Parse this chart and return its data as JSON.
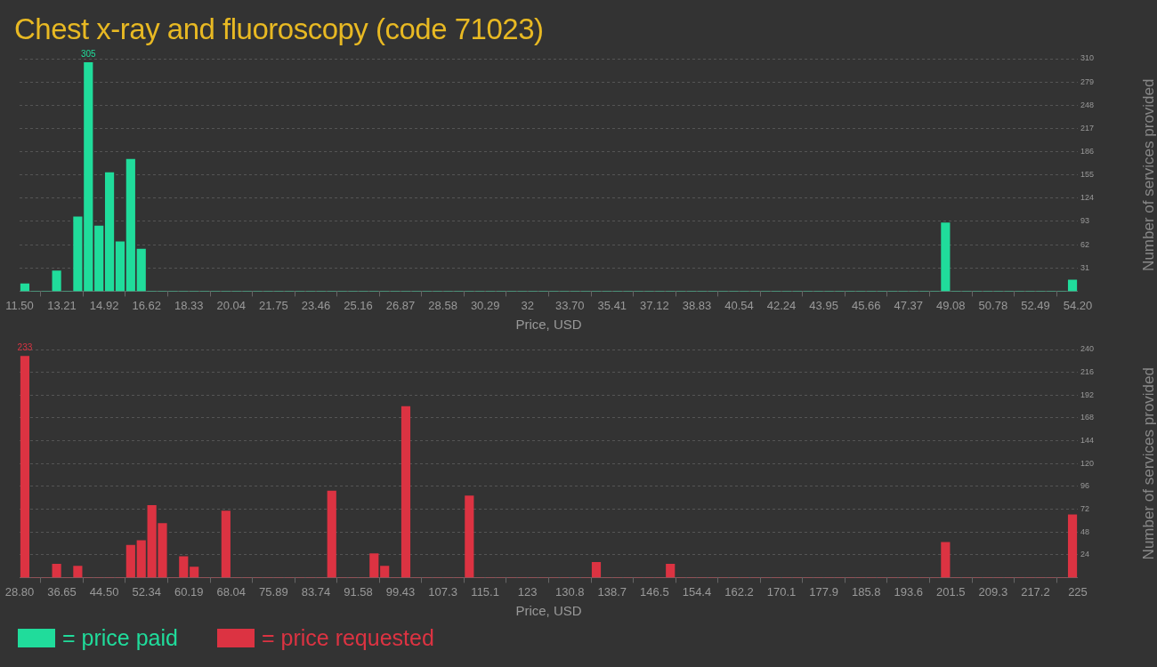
{
  "chart_data": [
    {
      "type": "histogram",
      "title": "Chest x-ray and fluoroscopy (code 71023)",
      "xlabel": "Price, USD",
      "ylabel": "Number of services provided",
      "grid": "y",
      "legend": "bottom left",
      "bins": [
        11.5,
        11.927,
        12.354,
        12.781,
        13.208,
        13.635,
        14.062,
        14.489,
        14.916,
        15.343,
        15.77,
        16.197,
        16.624,
        17.051,
        17.478,
        17.905,
        18.332,
        18.759,
        19.186,
        19.613,
        20.04,
        20.467,
        20.894,
        21.321,
        21.748,
        22.175,
        22.602,
        23.029,
        23.456,
        23.883,
        24.31,
        24.737,
        25.164,
        25.591,
        26.018,
        26.445,
        26.872,
        27.299,
        27.726,
        28.153,
        28.58,
        29.007,
        29.434,
        29.861,
        30.288,
        30.715,
        31.142,
        31.569,
        31.996,
        32.423,
        32.85,
        33.277,
        33.704,
        34.131,
        34.558,
        34.985,
        35.412,
        35.839,
        36.266,
        36.693,
        37.12,
        37.547,
        37.974,
        38.401,
        38.828,
        39.255,
        39.682,
        40.109,
        40.536,
        40.963,
        41.39,
        41.817,
        42.244,
        42.671,
        43.098,
        43.525,
        43.952,
        44.379,
        44.806,
        45.233,
        45.66,
        46.087,
        46.514,
        46.941,
        47.368,
        47.795,
        48.222,
        48.649,
        49.076,
        49.503,
        49.93,
        50.357,
        50.784,
        51.211,
        51.638,
        52.065,
        52.492,
        52.919,
        53.346,
        53.773,
        54.2
      ],
      "series": [
        {
          "name": "= price paid",
          "color": "#20dc9b",
          "values": [
            10,
            0,
            0,
            27,
            0,
            99,
            305,
            87,
            158,
            66,
            176,
            56,
            0,
            0,
            0,
            0,
            0,
            0,
            0,
            0,
            0,
            0,
            0,
            0,
            0,
            0,
            0,
            0,
            0,
            0,
            0,
            0,
            0,
            0,
            0,
            0,
            0,
            0,
            0,
            0,
            0,
            0,
            0,
            0,
            0,
            0,
            0,
            0,
            0,
            0,
            0,
            0,
            0,
            0,
            0,
            0,
            0,
            0,
            0,
            0,
            0,
            0,
            0,
            0,
            0,
            0,
            0,
            0,
            0,
            0,
            0,
            0,
            0,
            0,
            0,
            0,
            0,
            0,
            0,
            0,
            0,
            0,
            0,
            0,
            0,
            0,
            0,
            91,
            0,
            0,
            0,
            0,
            0,
            0,
            0,
            0,
            0,
            0,
            0,
            15
          ],
          "value_labels": [
            null,
            null,
            null,
            null,
            null,
            null,
            "305",
            null,
            null,
            null,
            null,
            null,
            null,
            null,
            null,
            null,
            null,
            null,
            null,
            null,
            null,
            null,
            null,
            null,
            null,
            null,
            null,
            null,
            null,
            null,
            null,
            null,
            null,
            null,
            null,
            null,
            null,
            null,
            null,
            null,
            null,
            null,
            null,
            null,
            null,
            null,
            null,
            null,
            null,
            null,
            null,
            null,
            null,
            null,
            null,
            null,
            null,
            null,
            null,
            null,
            null,
            null,
            null,
            null,
            null,
            null,
            null,
            null,
            null,
            null,
            null,
            null,
            null,
            null,
            null,
            null,
            null,
            null,
            null,
            null,
            null,
            null,
            null,
            null,
            null,
            null,
            null,
            null,
            null,
            null,
            null,
            null,
            null,
            null,
            null,
            null,
            null,
            null,
            null,
            null
          ]
        }
      ],
      "xlim": [
        11.5,
        54.2
      ],
      "xticks": [
        {
          "value": 11.5,
          "label": "11.50"
        },
        {
          "value": 13.208,
          "label": "13.21"
        },
        {
          "value": 14.916,
          "label": "14.92"
        },
        {
          "value": 16.624,
          "label": "16.62"
        },
        {
          "value": 18.332,
          "label": "18.33"
        },
        {
          "value": 20.04,
          "label": "20.04"
        },
        {
          "value": 21.748,
          "label": "21.75"
        },
        {
          "value": 23.456,
          "label": "23.46"
        },
        {
          "value": 25.164,
          "label": "25.16"
        },
        {
          "value": 26.872,
          "label": "26.87"
        },
        {
          "value": 28.58,
          "label": "28.58"
        },
        {
          "value": 30.288,
          "label": "30.29"
        },
        {
          "value": 31.996,
          "label": "32"
        },
        {
          "value": 33.704,
          "label": "33.70"
        },
        {
          "value": 35.412,
          "label": "35.41"
        },
        {
          "value": 37.12,
          "label": "37.12"
        },
        {
          "value": 38.828,
          "label": "38.83"
        },
        {
          "value": 40.536,
          "label": "40.54"
        },
        {
          "value": 42.244,
          "label": "42.24"
        },
        {
          "value": 43.952,
          "label": "43.95"
        },
        {
          "value": 45.66,
          "label": "45.66"
        },
        {
          "value": 47.368,
          "label": "47.37"
        },
        {
          "value": 49.076,
          "label": "49.08"
        },
        {
          "value": 50.784,
          "label": "50.78"
        },
        {
          "value": 52.492,
          "label": "52.49"
        },
        {
          "value": 54.2,
          "label": "54.20"
        }
      ],
      "ylim": [
        0,
        310
      ],
      "yticks": [
        31,
        62,
        93,
        124,
        155,
        186,
        217,
        248,
        279,
        310
      ]
    },
    {
      "type": "histogram",
      "xlabel": "Price, USD",
      "ylabel": "Number of services provided",
      "grid": "y",
      "legend": "bottom left",
      "bins": [
        28.8,
        30.762,
        32.724,
        34.686,
        36.648,
        38.61,
        40.572,
        42.534,
        44.496,
        46.458,
        48.42,
        50.382,
        52.344,
        54.306,
        56.268,
        58.23,
        60.192,
        62.154,
        64.116,
        66.078,
        68.04,
        70.002,
        71.964,
        73.926,
        75.888,
        77.85,
        79.812,
        81.774,
        83.736,
        85.698,
        87.66,
        89.622,
        91.584,
        93.546,
        95.508,
        97.47,
        99.432,
        101.394,
        103.356,
        105.318,
        107.28,
        109.242,
        111.204,
        113.166,
        115.128,
        117.09,
        119.052,
        121.014,
        122.976,
        124.938,
        126.9,
        128.862,
        130.824,
        132.786,
        134.748,
        136.71,
        138.672,
        140.634,
        142.596,
        144.558,
        146.52,
        148.482,
        150.444,
        152.406,
        154.368,
        156.33,
        158.292,
        160.254,
        162.216,
        164.178,
        166.14,
        168.102,
        170.064,
        172.026,
        173.988,
        175.95,
        177.912,
        179.874,
        181.836,
        183.798,
        185.76,
        187.722,
        189.684,
        191.646,
        193.608,
        195.57,
        197.532,
        199.494,
        201.456,
        203.418,
        205.38,
        207.342,
        209.304,
        211.266,
        213.228,
        215.19,
        217.152,
        219.114,
        221.076,
        223.038,
        225
      ],
      "series": [
        {
          "name": "= price requested",
          "color": "#dc3342",
          "values": [
            233,
            0,
            0,
            14,
            0,
            12,
            0,
            0,
            0,
            0,
            34,
            39,
            76,
            57,
            0,
            22,
            11,
            0,
            0,
            70,
            0,
            0,
            0,
            0,
            0,
            0,
            0,
            0,
            0,
            91,
            0,
            0,
            0,
            25,
            12,
            0,
            180,
            0,
            0,
            0,
            0,
            0,
            86,
            0,
            0,
            0,
            0,
            0,
            0,
            0,
            0,
            0,
            0,
            0,
            16,
            0,
            0,
            0,
            0,
            0,
            0,
            14,
            0,
            0,
            0,
            0,
            0,
            0,
            0,
            0,
            0,
            0,
            0,
            0,
            0,
            0,
            0,
            0,
            0,
            0,
            0,
            0,
            0,
            0,
            0,
            0,
            0,
            37,
            0,
            0,
            0,
            0,
            0,
            0,
            0,
            0,
            0,
            0,
            0,
            66
          ],
          "value_labels": [
            "233",
            null,
            null,
            null,
            null,
            null,
            null,
            null,
            null,
            null,
            null,
            null,
            null,
            null,
            null,
            null,
            null,
            null,
            null,
            null,
            null,
            null,
            null,
            null,
            null,
            null,
            null,
            null,
            null,
            null,
            null,
            null,
            null,
            null,
            null,
            null,
            null,
            null,
            null,
            null,
            null,
            null,
            null,
            null,
            null,
            null,
            null,
            null,
            null,
            null,
            null,
            null,
            null,
            null,
            null,
            null,
            null,
            null,
            null,
            null,
            null,
            null,
            null,
            null,
            null,
            null,
            null,
            null,
            null,
            null,
            null,
            null,
            null,
            null,
            null,
            null,
            null,
            null,
            null,
            null,
            null,
            null,
            null,
            null,
            null,
            null,
            null,
            null,
            null,
            null,
            null,
            null,
            null,
            null,
            null,
            null,
            null,
            null,
            null,
            null
          ]
        }
      ],
      "xlim": [
        28.8,
        225
      ],
      "xticks": [
        {
          "value": 28.8,
          "label": "28.80"
        },
        {
          "value": 36.648,
          "label": "36.65"
        },
        {
          "value": 44.496,
          "label": "44.50"
        },
        {
          "value": 52.344,
          "label": "52.34"
        },
        {
          "value": 60.192,
          "label": "60.19"
        },
        {
          "value": 68.04,
          "label": "68.04"
        },
        {
          "value": 75.888,
          "label": "75.89"
        },
        {
          "value": 83.736,
          "label": "83.74"
        },
        {
          "value": 91.584,
          "label": "91.58"
        },
        {
          "value": 99.432,
          "label": "99.43"
        },
        {
          "value": 107.28,
          "label": "107.3"
        },
        {
          "value": 115.128,
          "label": "115.1"
        },
        {
          "value": 122.976,
          "label": "123"
        },
        {
          "value": 130.824,
          "label": "130.8"
        },
        {
          "value": 138.672,
          "label": "138.7"
        },
        {
          "value": 146.52,
          "label": "146.5"
        },
        {
          "value": 154.368,
          "label": "154.4"
        },
        {
          "value": 162.216,
          "label": "162.2"
        },
        {
          "value": 170.064,
          "label": "170.1"
        },
        {
          "value": 177.912,
          "label": "177.9"
        },
        {
          "value": 185.76,
          "label": "185.8"
        },
        {
          "value": 193.608,
          "label": "193.6"
        },
        {
          "value": 201.456,
          "label": "201.5"
        },
        {
          "value": 209.304,
          "label": "209.3"
        },
        {
          "value": 217.152,
          "label": "217.2"
        },
        {
          "value": 225,
          "label": "225"
        }
      ],
      "ylim": [
        0,
        240
      ],
      "yticks": [
        24,
        48,
        72,
        96,
        120,
        144,
        168,
        192,
        216,
        240
      ]
    }
  ]
}
